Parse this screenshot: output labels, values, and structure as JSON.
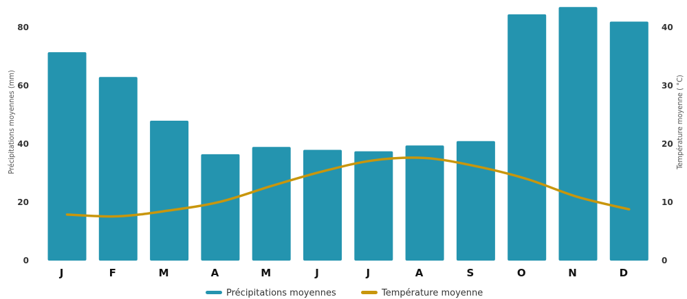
{
  "chart_data": {
    "type": "bar",
    "categories": [
      "J",
      "F",
      "M",
      "A",
      "M",
      "J",
      "J",
      "A",
      "S",
      "O",
      "N",
      "D"
    ],
    "series": [
      {
        "name": "Précipitations moyennes",
        "type": "bar",
        "axis": "left",
        "color": "#2494af",
        "values": [
          71.5,
          63,
          48,
          36.5,
          39,
          38,
          37.5,
          39.5,
          41,
          84.5,
          87,
          82
        ]
      },
      {
        "name": "Température moyenne",
        "type": "line",
        "axis": "right",
        "color": "#c8960c",
        "values": [
          7.9,
          7.6,
          8.6,
          10.1,
          12.8,
          15.3,
          17.2,
          17.6,
          16.2,
          14.0,
          10.9,
          8.8
        ]
      }
    ],
    "ylabel": "Précipitations moyennes (mm)",
    "y2label": "Température moyenne (  °C)",
    "ylim": [
      0,
      90
    ],
    "y2lim": [
      0,
      45
    ],
    "yticks": [
      "0",
      "20",
      "40",
      "60",
      "80"
    ],
    "y2ticks": [
      "0",
      "10",
      "20",
      "30",
      "40"
    ],
    "grid": false,
    "legend_position": "bottom-center"
  }
}
